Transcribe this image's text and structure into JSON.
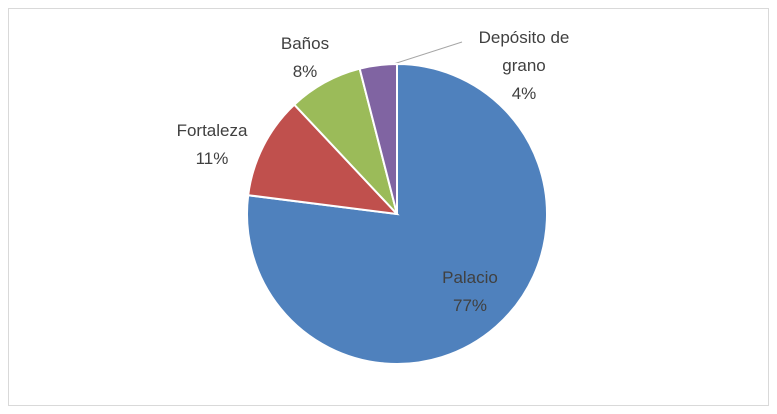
{
  "chart_data": {
    "type": "pie",
    "categories": [
      "Palacio",
      "Fortaleza",
      "Baños",
      "Depósito de grano"
    ],
    "values": [
      77,
      11,
      8,
      4
    ],
    "value_labels": [
      "77%",
      "11%",
      "8%",
      "4%"
    ],
    "colors": [
      "#4f81bd",
      "#c0504d",
      "#9bbb59",
      "#8064a2"
    ]
  }
}
